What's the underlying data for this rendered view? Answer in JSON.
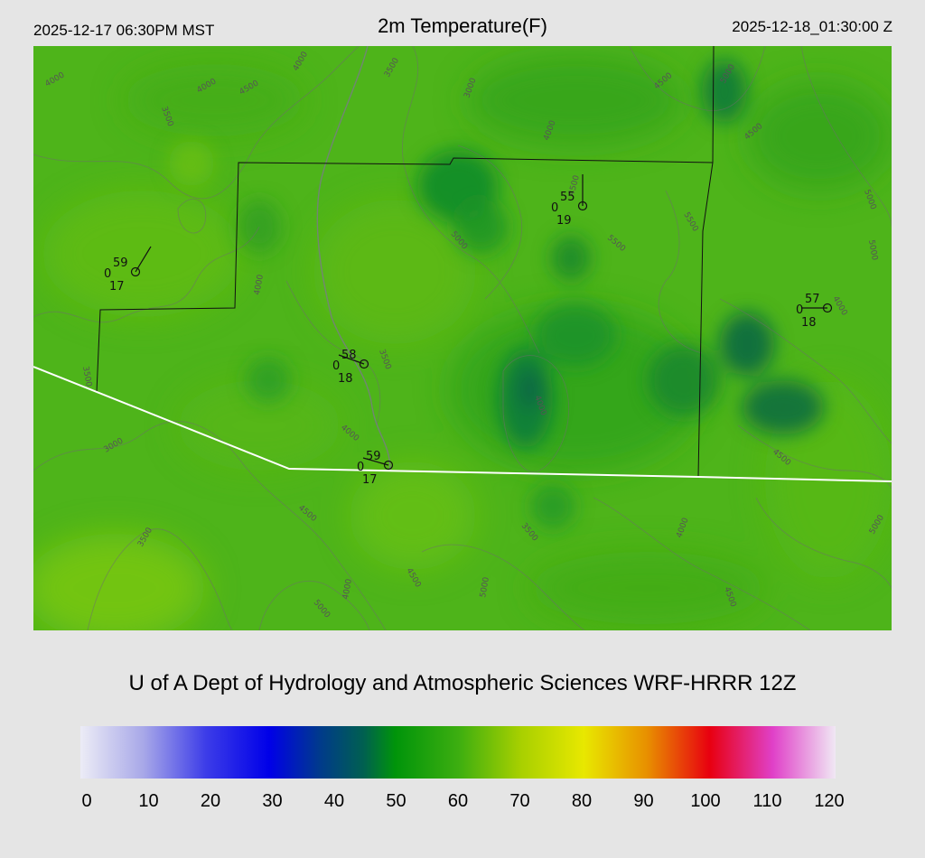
{
  "header": {
    "local_time": "2025-12-17 06:30PM MST",
    "title": "2m Temperature(F)",
    "utc_time": "2025-12-18_01:30:00 Z"
  },
  "footer": {
    "credit": "U of A Dept of Hydrology and Atmospheric Sciences WRF-HRRR 12Z"
  },
  "colorbar": {
    "min": 0,
    "max": 120,
    "ticks": [
      "0",
      "10",
      "20",
      "30",
      "40",
      "50",
      "60",
      "70",
      "80",
      "90",
      "100",
      "110",
      "120"
    ],
    "stops": [
      {
        "value": 0,
        "color": "#ececf6"
      },
      {
        "value": 10,
        "color": "#a8a8e8"
      },
      {
        "value": 20,
        "color": "#3c3ce8"
      },
      {
        "value": 30,
        "color": "#0000e8"
      },
      {
        "value": 38,
        "color": "#003a8c"
      },
      {
        "value": 45,
        "color": "#006050"
      },
      {
        "value": 50,
        "color": "#00940a"
      },
      {
        "value": 60,
        "color": "#3cae10"
      },
      {
        "value": 70,
        "color": "#a8d000"
      },
      {
        "value": 80,
        "color": "#e8e800"
      },
      {
        "value": 90,
        "color": "#e89000"
      },
      {
        "value": 100,
        "color": "#e80010"
      },
      {
        "value": 110,
        "color": "#e040c8"
      },
      {
        "value": 120,
        "color": "#f0e8f4"
      }
    ]
  },
  "map": {
    "base_color": "#4eb41a",
    "contour_labels": [
      "3500",
      "4000",
      "4500",
      "4000",
      "3500",
      "3000",
      "4000",
      "4500",
      "5000",
      "4500",
      "5500",
      "5000",
      "4000",
      "3500",
      "3000",
      "3500",
      "4000",
      "4500",
      "4500",
      "5000",
      "4000",
      "5000",
      "5000",
      "4500",
      "5500",
      "4000",
      "3500",
      "4000",
      "4500",
      "5000",
      "3500",
      "4000",
      "4500",
      "4000",
      "5000"
    ],
    "stations": [
      {
        "temp": "59",
        "wind": "0",
        "dew": "17"
      },
      {
        "temp": "55",
        "wind": "0",
        "dew": "19"
      },
      {
        "temp": "58",
        "wind": "0",
        "dew": "18"
      },
      {
        "temp": "59",
        "wind": "0",
        "dew": "17"
      },
      {
        "temp": "57",
        "wind": "0",
        "dew": "18"
      }
    ]
  }
}
